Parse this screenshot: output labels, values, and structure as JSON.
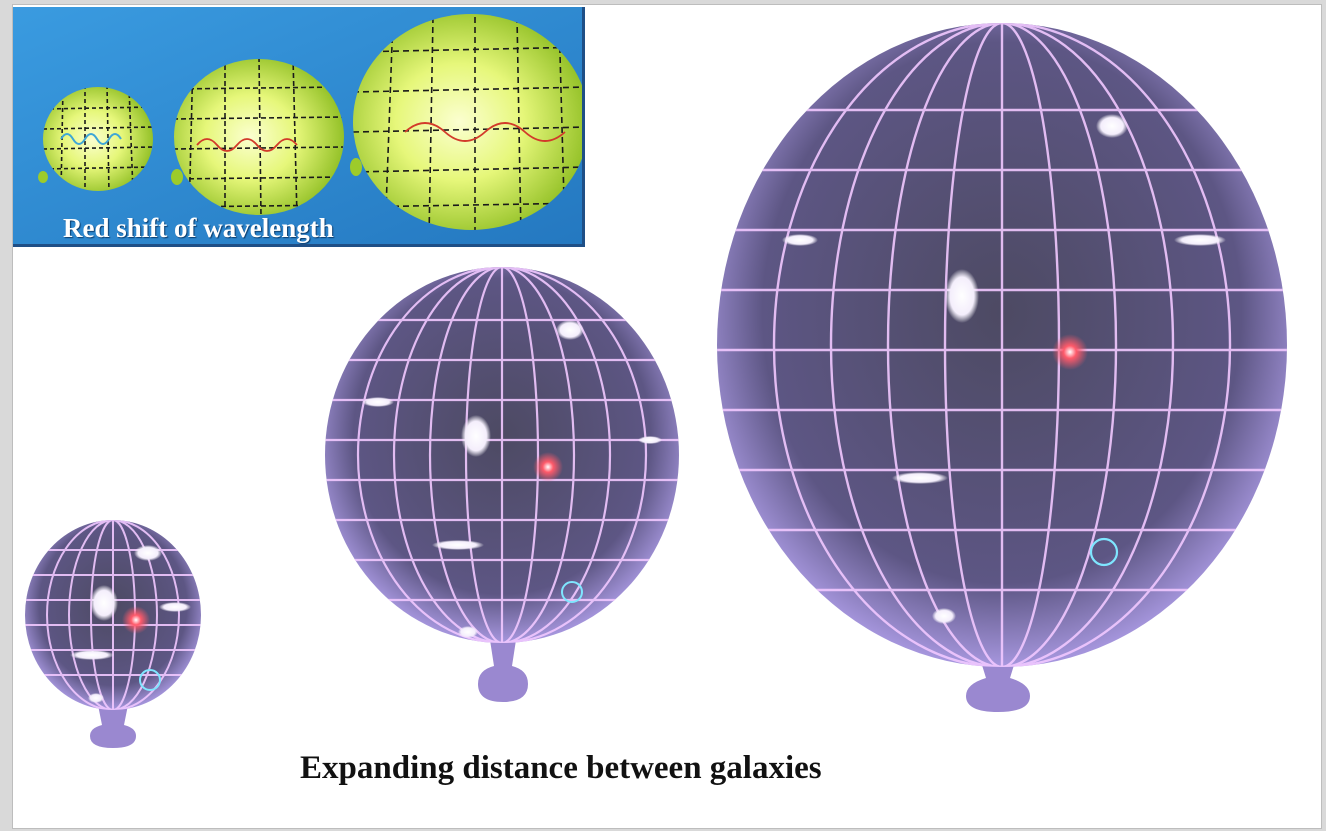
{
  "inset": {
    "caption": "Red shift of wavelength",
    "colors": {
      "background": "#2f8fd6",
      "balloon_light": "#f4ffb0",
      "balloon_dark": "#8fc21a",
      "grid": "#1a1a1a",
      "wave_blue": "#3fa7d6",
      "wave_red": "#d23a2a"
    }
  },
  "main": {
    "caption": "Expanding distance between galaxies",
    "colors": {
      "balloon_light": "#e8d9ff",
      "balloon_mid": "#b9a6ee",
      "balloon_dark": "#4b4570",
      "grid": "#f1c8ff",
      "star_red": "#ff4d5e",
      "galaxy": "#ffffff",
      "spiral": "#7fe6ff"
    }
  }
}
